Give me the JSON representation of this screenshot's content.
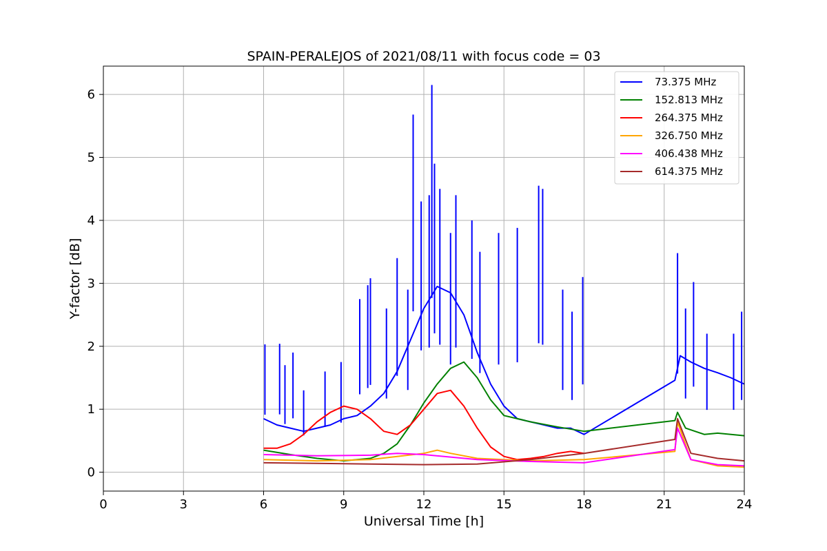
{
  "chart_data": {
    "type": "line",
    "title": "SPAIN-PERALEJOS of 2021/08/11 with focus code = 03",
    "xlabel": "Universal Time [h]",
    "ylabel": "Y-factor [dB]",
    "xlim": [
      0,
      24
    ],
    "ylim": [
      -0.3,
      6.45
    ],
    "xticks": [
      0,
      3,
      6,
      9,
      12,
      15,
      18,
      21,
      24
    ],
    "yticks": [
      0,
      1,
      2,
      3,
      4,
      5,
      6
    ],
    "grid": true,
    "legend_position": "top-right",
    "series": [
      {
        "name": " 73.375 MHz",
        "color": "#0000ff",
        "x": [
          6.0,
          6.5,
          7.0,
          7.5,
          8.0,
          8.5,
          9.0,
          9.5,
          10.0,
          10.5,
          11.0,
          11.5,
          12.0,
          12.5,
          13.0,
          13.5,
          14.0,
          14.5,
          15.0,
          15.5,
          16.0,
          16.5,
          17.0,
          17.5,
          18.0,
          21.4,
          21.6,
          22.0,
          22.5,
          23.0,
          23.5,
          24.0
        ],
        "values": [
          0.85,
          0.75,
          0.7,
          0.65,
          0.7,
          0.75,
          0.85,
          0.9,
          1.05,
          1.25,
          1.6,
          2.1,
          2.6,
          2.95,
          2.85,
          2.5,
          1.9,
          1.4,
          1.05,
          0.85,
          0.8,
          0.75,
          0.7,
          0.7,
          0.6,
          1.46,
          1.85,
          1.75,
          1.65,
          1.58,
          1.5,
          1.4
        ],
        "spikes": [
          [
            6.05,
            2.03
          ],
          [
            6.6,
            2.04
          ],
          [
            6.8,
            1.7
          ],
          [
            7.1,
            1.9
          ],
          [
            7.5,
            1.3
          ],
          [
            8.3,
            1.6
          ],
          [
            8.9,
            1.75
          ],
          [
            9.6,
            2.75
          ],
          [
            9.9,
            2.97
          ],
          [
            10.0,
            3.08
          ],
          [
            10.6,
            2.6
          ],
          [
            11.0,
            3.4
          ],
          [
            11.4,
            2.9
          ],
          [
            11.6,
            5.68
          ],
          [
            11.9,
            4.3
          ],
          [
            12.2,
            4.4
          ],
          [
            12.3,
            6.15
          ],
          [
            12.4,
            4.9
          ],
          [
            12.6,
            4.5
          ],
          [
            13.0,
            3.8
          ],
          [
            13.2,
            4.4
          ],
          [
            13.8,
            4.0
          ],
          [
            14.1,
            3.5
          ],
          [
            14.8,
            3.8
          ],
          [
            15.5,
            3.88
          ],
          [
            16.3,
            4.55
          ],
          [
            16.45,
            4.5
          ],
          [
            17.2,
            2.9
          ],
          [
            17.55,
            2.55
          ],
          [
            17.95,
            3.1
          ],
          [
            21.5,
            3.48
          ],
          [
            21.8,
            2.6
          ],
          [
            22.1,
            3.02
          ],
          [
            22.6,
            2.2
          ],
          [
            23.6,
            2.2
          ],
          [
            23.9,
            2.55
          ]
        ]
      },
      {
        "name": "152.813 MHz",
        "color": "#008000",
        "x": [
          6.0,
          7.0,
          8.0,
          9.0,
          10.0,
          10.5,
          11.0,
          11.5,
          12.0,
          12.5,
          13.0,
          13.5,
          14.0,
          14.5,
          15.0,
          15.5,
          16.0,
          17.0,
          18.0,
          21.4,
          21.5,
          21.8,
          22.5,
          23.0,
          24.0
        ],
        "values": [
          0.35,
          0.28,
          0.22,
          0.18,
          0.22,
          0.3,
          0.45,
          0.75,
          1.1,
          1.4,
          1.65,
          1.75,
          1.5,
          1.15,
          0.9,
          0.85,
          0.8,
          0.72,
          0.65,
          0.82,
          0.95,
          0.7,
          0.6,
          0.62,
          0.58
        ]
      },
      {
        "name": "264.375 MHz",
        "color": "#ff0000",
        "x": [
          6.0,
          6.5,
          7.0,
          7.5,
          8.0,
          8.5,
          9.0,
          9.5,
          10.0,
          10.5,
          11.0,
          11.5,
          12.0,
          12.5,
          13.0,
          13.5,
          14.0,
          14.5,
          15.0,
          15.5,
          16.0,
          16.5,
          17.0,
          17.5,
          18.0
        ],
        "values": [
          0.38,
          0.38,
          0.45,
          0.6,
          0.8,
          0.95,
          1.05,
          1.0,
          0.85,
          0.65,
          0.6,
          0.75,
          1.0,
          1.25,
          1.3,
          1.05,
          0.7,
          0.4,
          0.25,
          0.2,
          0.22,
          0.25,
          0.3,
          0.33,
          0.3
        ]
      },
      {
        "name": "326.750 MHz",
        "color": "#ffa500",
        "x": [
          6.0,
          8.0,
          10.0,
          12.0,
          12.5,
          13.0,
          14.0,
          16.0,
          18.0,
          21.4,
          21.5,
          22.0,
          23.0,
          24.0
        ],
        "values": [
          0.2,
          0.18,
          0.2,
          0.3,
          0.35,
          0.3,
          0.22,
          0.18,
          0.2,
          0.33,
          0.8,
          0.2,
          0.1,
          0.08
        ]
      },
      {
        "name": "406.438 MHz",
        "color": "#ff00ff",
        "x": [
          6.0,
          8.0,
          10.0,
          11.0,
          12.0,
          13.0,
          14.0,
          16.0,
          18.0,
          21.4,
          21.5,
          22.0,
          23.0,
          24.0
        ],
        "values": [
          0.28,
          0.26,
          0.27,
          0.3,
          0.28,
          0.24,
          0.2,
          0.17,
          0.15,
          0.36,
          0.7,
          0.2,
          0.12,
          0.1
        ]
      },
      {
        "name": "614.375 MHz",
        "color": "#a52a2a",
        "x": [
          6.0,
          8.0,
          10.0,
          12.0,
          14.0,
          16.0,
          17.0,
          18.0,
          21.4,
          21.5,
          22.0,
          23.0,
          24.0
        ],
        "values": [
          0.15,
          0.14,
          0.13,
          0.12,
          0.13,
          0.2,
          0.25,
          0.3,
          0.52,
          0.85,
          0.3,
          0.22,
          0.18
        ]
      }
    ]
  }
}
